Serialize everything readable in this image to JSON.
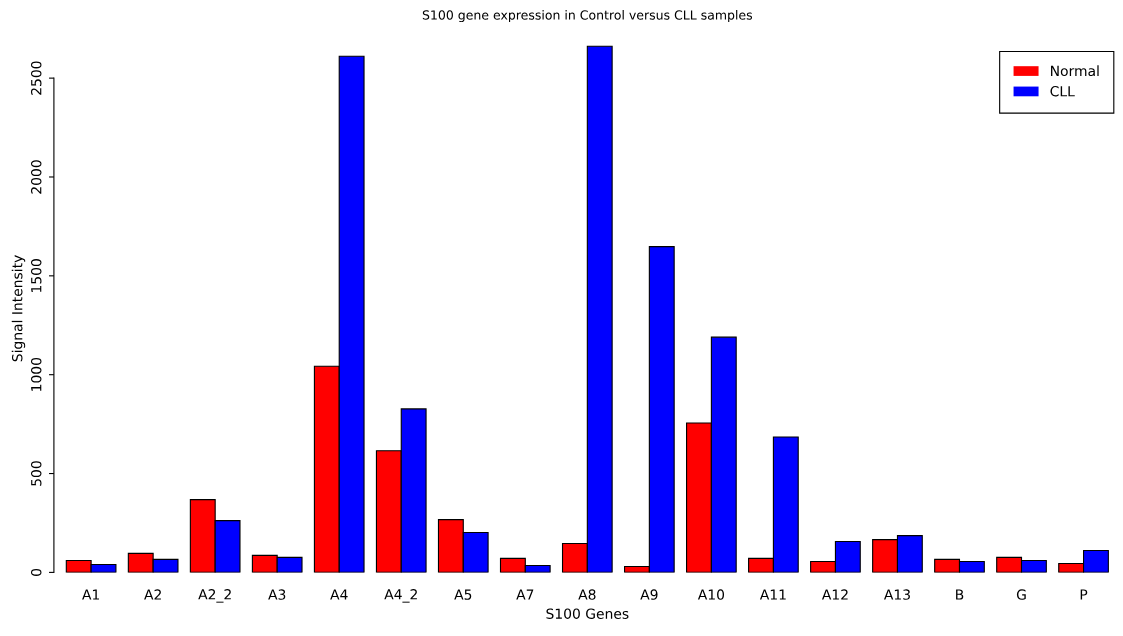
{
  "chart_data": {
    "type": "bar",
    "title": "S100 gene expression in Control versus CLL samples",
    "xlabel": "S100 Genes",
    "ylabel": "Signal Intensity",
    "categories": [
      "A1",
      "A2",
      "A2_2",
      "A3",
      "A4",
      "A4_2",
      "A5",
      "A7",
      "A8",
      "A9",
      "A10",
      "A11",
      "A12",
      "A13",
      "B",
      "G",
      "P"
    ],
    "series": [
      {
        "name": "Normal",
        "color": "#ff0000",
        "values": [
          60,
          96,
          368,
          86,
          1043,
          615,
          267,
          71,
          146,
          30,
          756,
          71,
          55,
          166,
          66,
          76,
          45
        ]
      },
      {
        "name": "CLL",
        "color": "#0000ff",
        "values": [
          40,
          66,
          262,
          76,
          2611,
          827,
          202,
          35,
          2661,
          1648,
          1190,
          685,
          156,
          186,
          55,
          60,
          111
        ]
      }
    ],
    "ylim": [
      0,
      2670
    ],
    "yticks": [
      0,
      500,
      1000,
      1500,
      2000,
      2500
    ],
    "grid": false,
    "legend": "top right"
  }
}
